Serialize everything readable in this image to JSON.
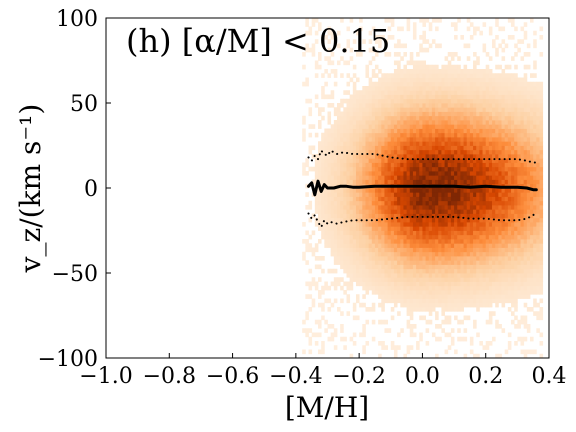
{
  "chart_data": {
    "type": "heatmap",
    "annotation": "(h) [α/M] < 0.15",
    "xlabel": "[M/H]",
    "ylabel": "v_z/(km s⁻¹)",
    "xlim": [
      -1.0,
      0.4
    ],
    "ylim": [
      -100,
      100
    ],
    "x_ticks": [
      "−1.0",
      "−0.8",
      "−0.6",
      "−0.4",
      "−0.2",
      "0.0",
      "0.2",
      "0.4"
    ],
    "y_ticks": [
      "−100",
      "−50",
      "0",
      "50",
      "100"
    ],
    "grid": false,
    "colormap": [
      "#fff5eb",
      "#fdd0a2",
      "#fd8d3c",
      "#d94801",
      "#7f2704"
    ],
    "density": {
      "center_x": 0.03,
      "center_y": 0.0,
      "sigma_x_left": 0.13,
      "sigma_x_right": 0.22,
      "sigma_y": 25,
      "x_min": -0.38,
      "x_max": 0.38
    },
    "series": [
      {
        "name": "median",
        "style": "solid",
        "color": "#000000",
        "x": [
          -0.36,
          -0.35,
          -0.34,
          -0.33,
          -0.32,
          -0.31,
          -0.3,
          -0.28,
          -0.26,
          -0.24,
          -0.22,
          -0.2,
          -0.15,
          -0.1,
          -0.05,
          0.0,
          0.05,
          0.1,
          0.15,
          0.2,
          0.25,
          0.3,
          0.33,
          0.35,
          0.36
        ],
        "y": [
          1,
          3,
          -4,
          4,
          -2,
          2,
          0,
          0,
          1,
          1,
          0.5,
          0.5,
          1,
          1,
          1,
          1,
          1,
          1,
          0.5,
          1,
          0.5,
          0.5,
          0,
          -1,
          -1
        ]
      },
      {
        "name": "upper-percentile",
        "style": "dotted",
        "color": "#000000",
        "x": [
          -0.36,
          -0.35,
          -0.34,
          -0.33,
          -0.32,
          -0.31,
          -0.3,
          -0.29,
          -0.27,
          -0.25,
          -0.22,
          -0.2,
          -0.15,
          -0.1,
          -0.05,
          0.0,
          0.05,
          0.1,
          0.15,
          0.2,
          0.25,
          0.3,
          0.33,
          0.35,
          0.36
        ],
        "y": [
          18,
          16,
          19,
          17,
          22,
          20,
          19,
          22,
          20,
          21,
          20,
          20,
          20,
          18,
          17,
          17,
          17,
          17,
          17,
          17,
          17,
          17,
          16,
          15,
          15
        ]
      },
      {
        "name": "lower-percentile",
        "style": "dotted",
        "color": "#000000",
        "x": [
          -0.36,
          -0.35,
          -0.34,
          -0.33,
          -0.32,
          -0.31,
          -0.3,
          -0.29,
          -0.27,
          -0.25,
          -0.22,
          -0.2,
          -0.15,
          -0.1,
          -0.05,
          0.0,
          0.05,
          0.1,
          0.15,
          0.2,
          0.25,
          0.3,
          0.33,
          0.35,
          0.36
        ],
        "y": [
          -15,
          -18,
          -16,
          -20,
          -23,
          -19,
          -21,
          -20,
          -21,
          -20,
          -19,
          -19,
          -19,
          -18,
          -17,
          -17,
          -17,
          -17,
          -18,
          -18,
          -19,
          -19,
          -18,
          -16,
          -14
        ]
      }
    ]
  }
}
